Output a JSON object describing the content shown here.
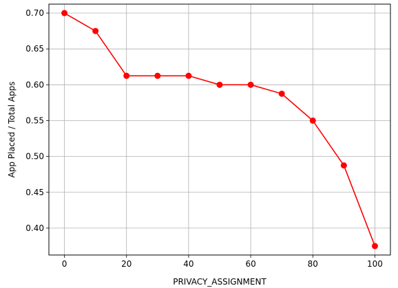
{
  "chart_data": {
    "type": "line",
    "title": "",
    "xlabel": "PRIVACY_ASSIGNMENT",
    "ylabel": "App Placed / Total Apps",
    "xlim": [
      -5,
      105
    ],
    "ylim": [
      0.3625,
      0.7125
    ],
    "xticks": [
      0,
      20,
      40,
      60,
      80,
      100
    ],
    "yticks": [
      0.4,
      0.45,
      0.5,
      0.55,
      0.6,
      0.65,
      0.7
    ],
    "xtick_labels": [
      "0",
      "20",
      "40",
      "60",
      "80",
      "100"
    ],
    "ytick_labels": [
      "0.40",
      "0.45",
      "0.50",
      "0.55",
      "0.60",
      "0.65",
      "0.70"
    ],
    "grid": true,
    "series": [
      {
        "color": "#ff0000",
        "marker": "circle",
        "x": [
          0,
          10,
          20,
          30,
          40,
          50,
          60,
          70,
          80,
          90,
          100
        ],
        "y": [
          0.7,
          0.675,
          0.6125,
          0.6125,
          0.6125,
          0.6,
          0.6,
          0.5875,
          0.55,
          0.4875,
          0.375
        ]
      }
    ]
  }
}
